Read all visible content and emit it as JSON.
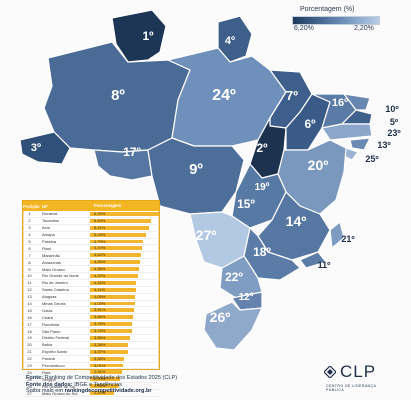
{
  "legend": {
    "title": "Porcentagem (%)",
    "min_label": "6,20%",
    "max_label": "2,20%",
    "color_dark": "#1f3a5c",
    "color_light": "#b9cde6"
  },
  "map": {
    "states": [
      {
        "uf": "RR",
        "rank": "1º"
      },
      {
        "uf": "AP",
        "rank": "4º"
      },
      {
        "uf": "AM",
        "rank": "8º"
      },
      {
        "uf": "PA",
        "rank": "24º"
      },
      {
        "uf": "MA",
        "rank": "7º"
      },
      {
        "uf": "CE",
        "rank": "16º"
      },
      {
        "uf": "RN",
        "rank": "10º"
      },
      {
        "uf": "PB",
        "rank": "5º"
      },
      {
        "uf": "PE",
        "rank": "23º"
      },
      {
        "uf": "AL",
        "rank": "13º"
      },
      {
        "uf": "SE",
        "rank": "25º"
      },
      {
        "uf": "PI",
        "rank": "6º"
      },
      {
        "uf": "TO",
        "rank": "2º"
      },
      {
        "uf": "BA",
        "rank": "20º"
      },
      {
        "uf": "AC",
        "rank": "3º"
      },
      {
        "uf": "RO",
        "rank": "17º"
      },
      {
        "uf": "MT",
        "rank": "9º"
      },
      {
        "uf": "DF",
        "rank": "19º"
      },
      {
        "uf": "GO",
        "rank": "15º"
      },
      {
        "uf": "MG",
        "rank": "14º"
      },
      {
        "uf": "ES",
        "rank": "21º"
      },
      {
        "uf": "RJ",
        "rank": "11º"
      },
      {
        "uf": "MS",
        "rank": "27º"
      },
      {
        "uf": "SP",
        "rank": "18º"
      },
      {
        "uf": "PR",
        "rank": "22º"
      },
      {
        "uf": "SC",
        "rank": "12º"
      },
      {
        "uf": "RS",
        "rank": "26º"
      }
    ]
  },
  "table": {
    "headers": {
      "pos": "Posição",
      "uf": "UF",
      "pct": "Porcentagem"
    },
    "rows": [
      {
        "pos": "1",
        "uf": "Roraima",
        "pct": "6,20%",
        "value": 6.2
      },
      {
        "pos": "2",
        "uf": "Tocantins",
        "pct": "5,49%",
        "value": 5.49
      },
      {
        "pos": "3",
        "uf": "Acre",
        "pct": "5,31%",
        "value": 5.31
      },
      {
        "pos": "4",
        "uf": "Amapá",
        "pct": "5,03%",
        "value": 5.03
      },
      {
        "pos": "5",
        "uf": "Paraíba",
        "pct": "4,79%",
        "value": 4.79
      },
      {
        "pos": "6",
        "uf": "Piauí",
        "pct": "4,70%",
        "value": 4.7
      },
      {
        "pos": "7",
        "uf": "Maranhão",
        "pct": "4,62%",
        "value": 4.62
      },
      {
        "pos": "8",
        "uf": "Amazonas",
        "pct": "4,45%",
        "value": 4.45
      },
      {
        "pos": "9",
        "uf": "Mato Grosso",
        "pct": "4,36%",
        "value": 4.36
      },
      {
        "pos": "10",
        "uf": "Rio Grande do Norte",
        "pct": "4,32%",
        "value": 4.32
      },
      {
        "pos": "11",
        "uf": "Rio de Janeiro",
        "pct": "4,16%",
        "value": 4.16
      },
      {
        "pos": "12",
        "uf": "Santa Catarina",
        "pct": "4,11%",
        "value": 4.11
      },
      {
        "pos": "13",
        "uf": "Alagoas",
        "pct": "4,05%",
        "value": 4.05
      },
      {
        "pos": "14",
        "uf": "Minas Gerais",
        "pct": "4,03%",
        "value": 4.03
      },
      {
        "pos": "15",
        "uf": "Goiás",
        "pct": "3,91%",
        "value": 3.91
      },
      {
        "pos": "16",
        "uf": "Ceará",
        "pct": "3,85%",
        "value": 3.85
      },
      {
        "pos": "17",
        "uf": "Rondônia",
        "pct": "3,76%",
        "value": 3.76
      },
      {
        "pos": "18",
        "uf": "São Paulo",
        "pct": "3,74%",
        "value": 3.74
      },
      {
        "pos": "19",
        "uf": "Distrito Federal",
        "pct": "3,56%",
        "value": 3.56
      },
      {
        "pos": "20",
        "uf": "Bahia",
        "pct": "3,38%",
        "value": 3.38
      },
      {
        "pos": "21",
        "uf": "Espírito Santo",
        "pct": "3,37%",
        "value": 3.37
      },
      {
        "pos": "22",
        "uf": "Paraná",
        "pct": "3,08%",
        "value": 3.08
      },
      {
        "pos": "23",
        "uf": "Pernambuco",
        "pct": "3,01%",
        "value": 3.01
      },
      {
        "pos": "24",
        "uf": "Pará",
        "pct": "2,91%",
        "value": 2.91
      },
      {
        "pos": "25",
        "uf": "Sergipe",
        "pct": "2,70%",
        "value": 2.7
      },
      {
        "pos": "26",
        "uf": "Rio Grande do Sul",
        "pct": "2,59%",
        "value": 2.59
      },
      {
        "pos": "27",
        "uf": "Mato Grosso do Sul",
        "pct": "2,20%",
        "value": 2.2
      }
    ],
    "max_value": 6.2,
    "bar_color": "#f2b52c"
  },
  "source": {
    "line1_label": "Fonte:",
    "line1_text": "Ranking de Competitividade dos Estados 2025 (CLP)",
    "line2_label": "Fonte dos dados:",
    "line2_text": "IBGE e Tendências",
    "line3_text": "Saiba mais em",
    "line3_link": "rankingdecompetitividade.org.br"
  },
  "logo": {
    "name": "CLP",
    "subtitle": "CENTRO DE LIDERANÇA PÚBLICA"
  }
}
